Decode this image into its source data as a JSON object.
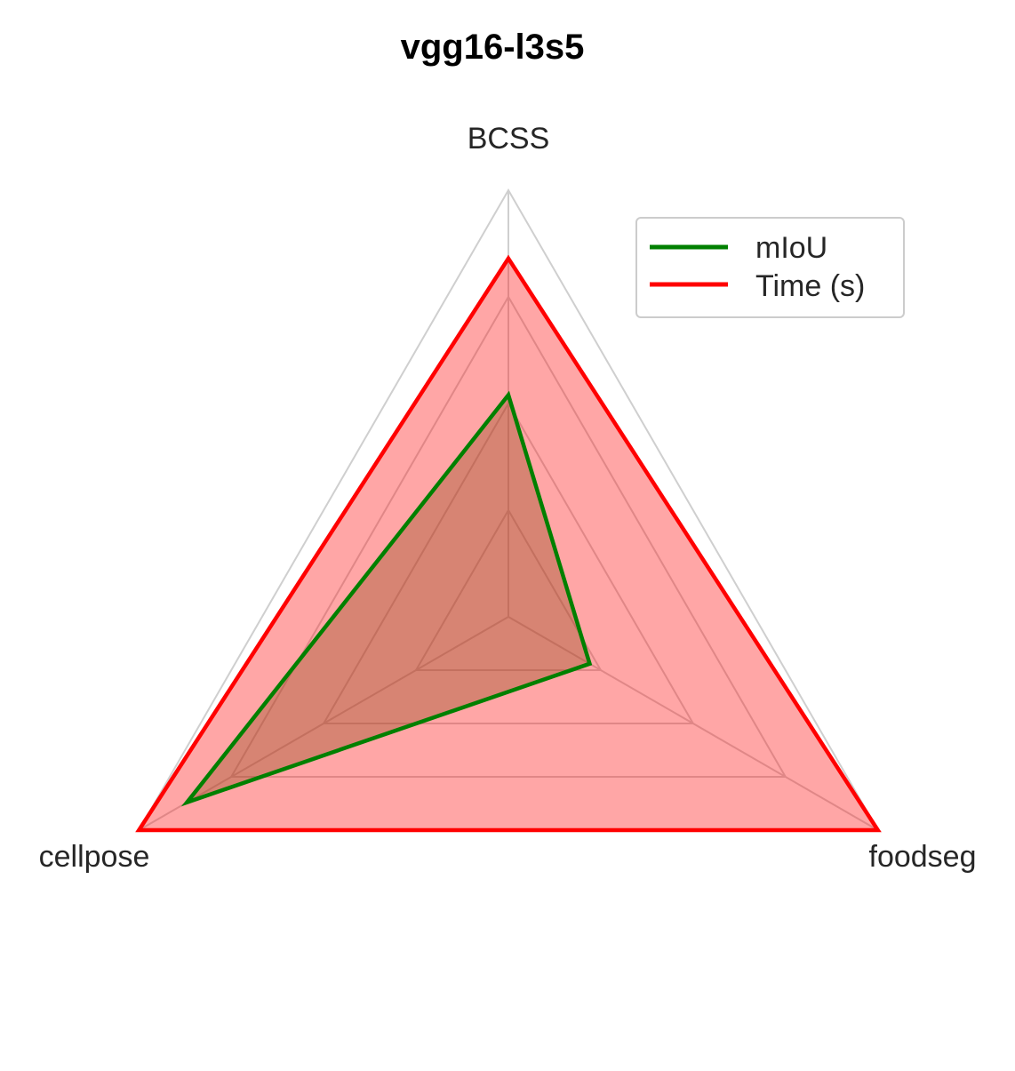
{
  "chart_data": {
    "type": "radar",
    "title": "vgg16-l3s5",
    "categories": [
      "BCSS",
      "foodseg",
      "cellpose"
    ],
    "rmax": 1.0,
    "grid_levels": [
      0.25,
      0.5,
      0.75,
      1.0
    ],
    "grid": true,
    "legend_position": "top-right",
    "series": [
      {
        "name": "mIoU",
        "values": [
          0.52,
          0.22,
          0.87
        ],
        "color": "#008000",
        "fill": "#8B4513"
      },
      {
        "name": "Time (s)",
        "values": [
          0.84,
          1.0,
          1.0
        ],
        "color": "#ff0000",
        "fill": "#ff0000"
      }
    ]
  }
}
